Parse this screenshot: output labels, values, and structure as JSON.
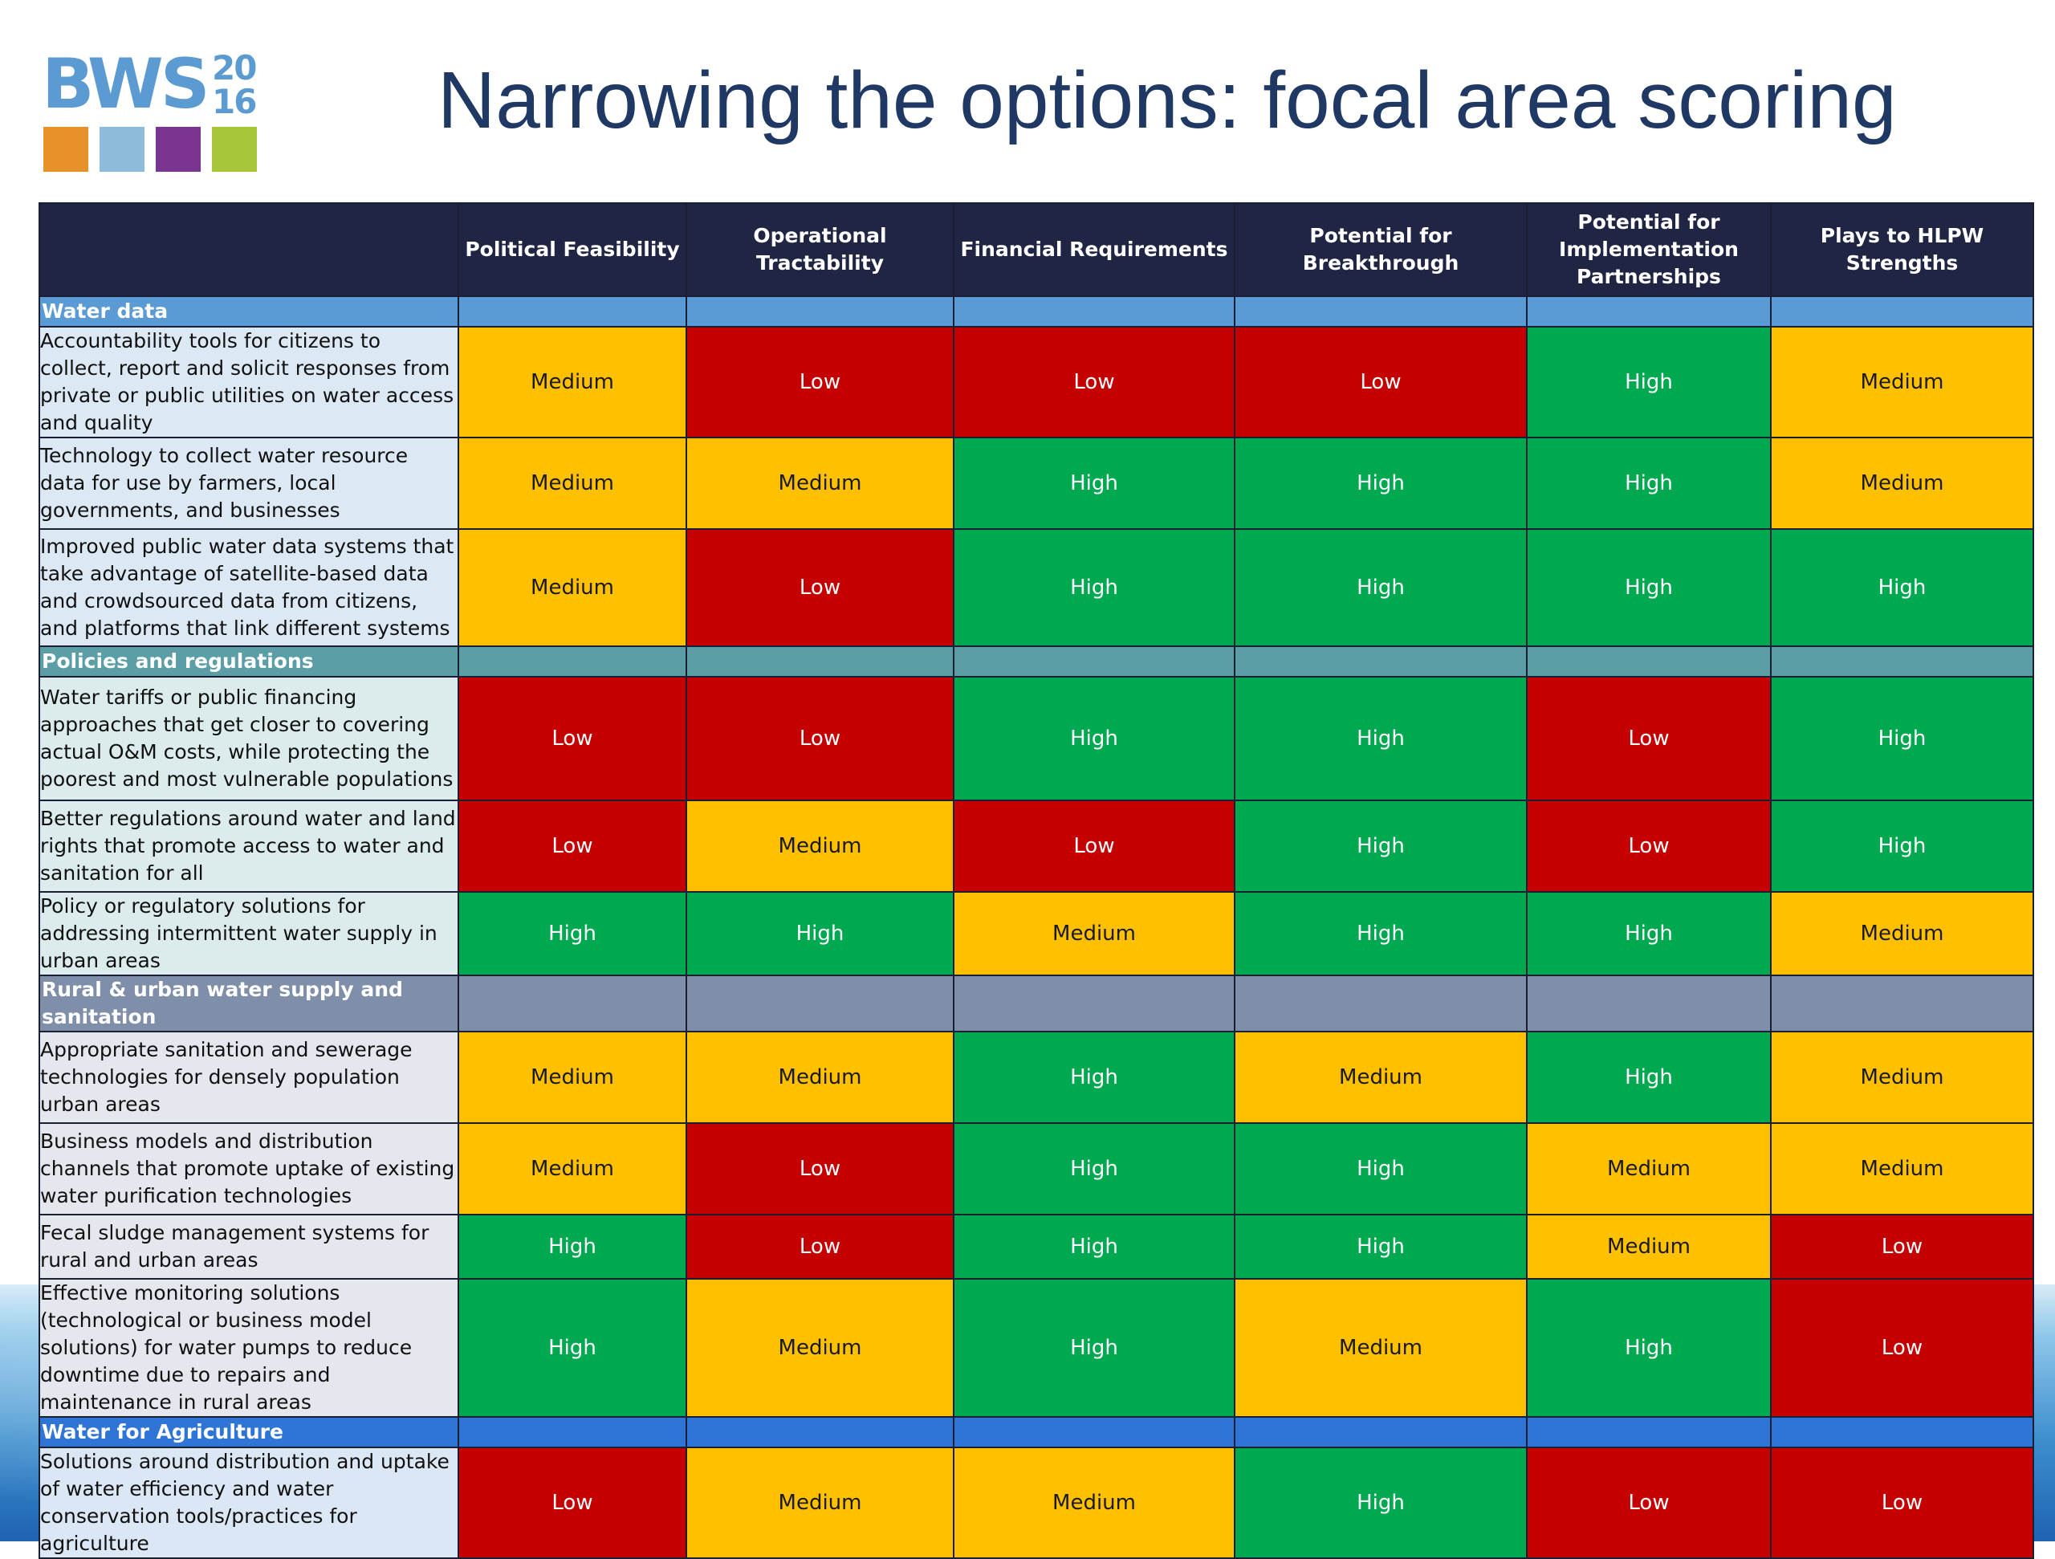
{
  "logo": {
    "text": "BWS",
    "year_top": "20",
    "year_bottom": "16",
    "square_colors": [
      "#e8912a",
      "#8ebadc",
      "#7a3590",
      "#a7c63c"
    ],
    "text_color": "#5c9bd1"
  },
  "title": "Narrowing the options: focal area scoring",
  "colors": {
    "High": "#00a84f",
    "Medium": "#ffc000",
    "Low": "#c40000",
    "header": "#202544",
    "title": "#1f3864"
  },
  "table": {
    "columns": [
      "Political Feasibility",
      "Operational Tractability",
      "Financial Requirements",
      "Potential for Breakthrough",
      "Potential for Implementation Partnerships",
      "Plays to HLPW Strengths"
    ],
    "sections": [
      {
        "name": "Water data",
        "bar_color": "#5b9bd5",
        "label_bg": "#dce9f5",
        "rows": [
          {
            "label": "Accountability tools for citizens to collect, report and solicit responses from private or public utilities on water access and quality",
            "scores": [
              "Medium",
              "Low",
              "Low",
              "Low",
              "High",
              "Medium"
            ]
          },
          {
            "label": "Technology to collect water resource data for use by farmers, local governments, and businesses",
            "scores": [
              "Medium",
              "Medium",
              "High",
              "High",
              "High",
              "Medium"
            ]
          },
          {
            "label": "Improved public water data systems that take advantage of satellite-based data and crowdsourced data from citizens, and platforms that link different systems",
            "scores": [
              "Medium",
              "Low",
              "High",
              "High",
              "High",
              "High"
            ]
          }
        ]
      },
      {
        "name": "Policies and regulations",
        "bar_color": "#5b9ea6",
        "label_bg": "#dcebec",
        "rows": [
          {
            "label": "Water tariffs or public financing approaches that get closer to covering actual O&M costs, while protecting the poorest and most vulnerable populations",
            "scores": [
              "Low",
              "Low",
              "High",
              "High",
              "Low",
              "High"
            ]
          },
          {
            "label": "Better regulations around water and land rights that promote access to water and sanitation for all",
            "scores": [
              "Low",
              "Medium",
              "Low",
              "High",
              "Low",
              "High"
            ]
          },
          {
            "label": "Policy or regulatory solutions for addressing intermittent water supply in urban areas",
            "scores": [
              "High",
              "High",
              "Medium",
              "High",
              "High",
              "Medium"
            ]
          }
        ]
      },
      {
        "name": "Rural & urban water supply and sanitation",
        "bar_color": "#7f8fa9",
        "label_bg": "#e4e7ee",
        "rows": [
          {
            "label": "Appropriate sanitation and sewerage technologies for densely population urban areas",
            "scores": [
              "Medium",
              "Medium",
              "High",
              "Medium",
              "High",
              "Medium"
            ]
          },
          {
            "label": "Business models and distribution channels that promote uptake of existing water purification technologies",
            "scores": [
              "Medium",
              "Low",
              "High",
              "High",
              "Medium",
              "Medium"
            ]
          },
          {
            "label": "Fecal sludge management systems for rural and urban areas",
            "scores": [
              "High",
              "Low",
              "High",
              "High",
              "Medium",
              "Low"
            ]
          },
          {
            "label": "Effective monitoring solutions (technological or business model solutions) for water pumps to reduce downtime due to repairs and maintenance in rural areas",
            "scores": [
              "High",
              "Medium",
              "High",
              "Medium",
              "High",
              "Low"
            ]
          }
        ]
      },
      {
        "name": "Water for Agriculture",
        "bar_color": "#2e75d6",
        "label_bg": "#dce7f5",
        "rows": [
          {
            "label": "Solutions around distribution and uptake of water efficiency and water conservation tools/practices for agriculture",
            "scores": [
              "Low",
              "Medium",
              "Medium",
              "High",
              "Low",
              "Low"
            ]
          }
        ]
      }
    ]
  }
}
